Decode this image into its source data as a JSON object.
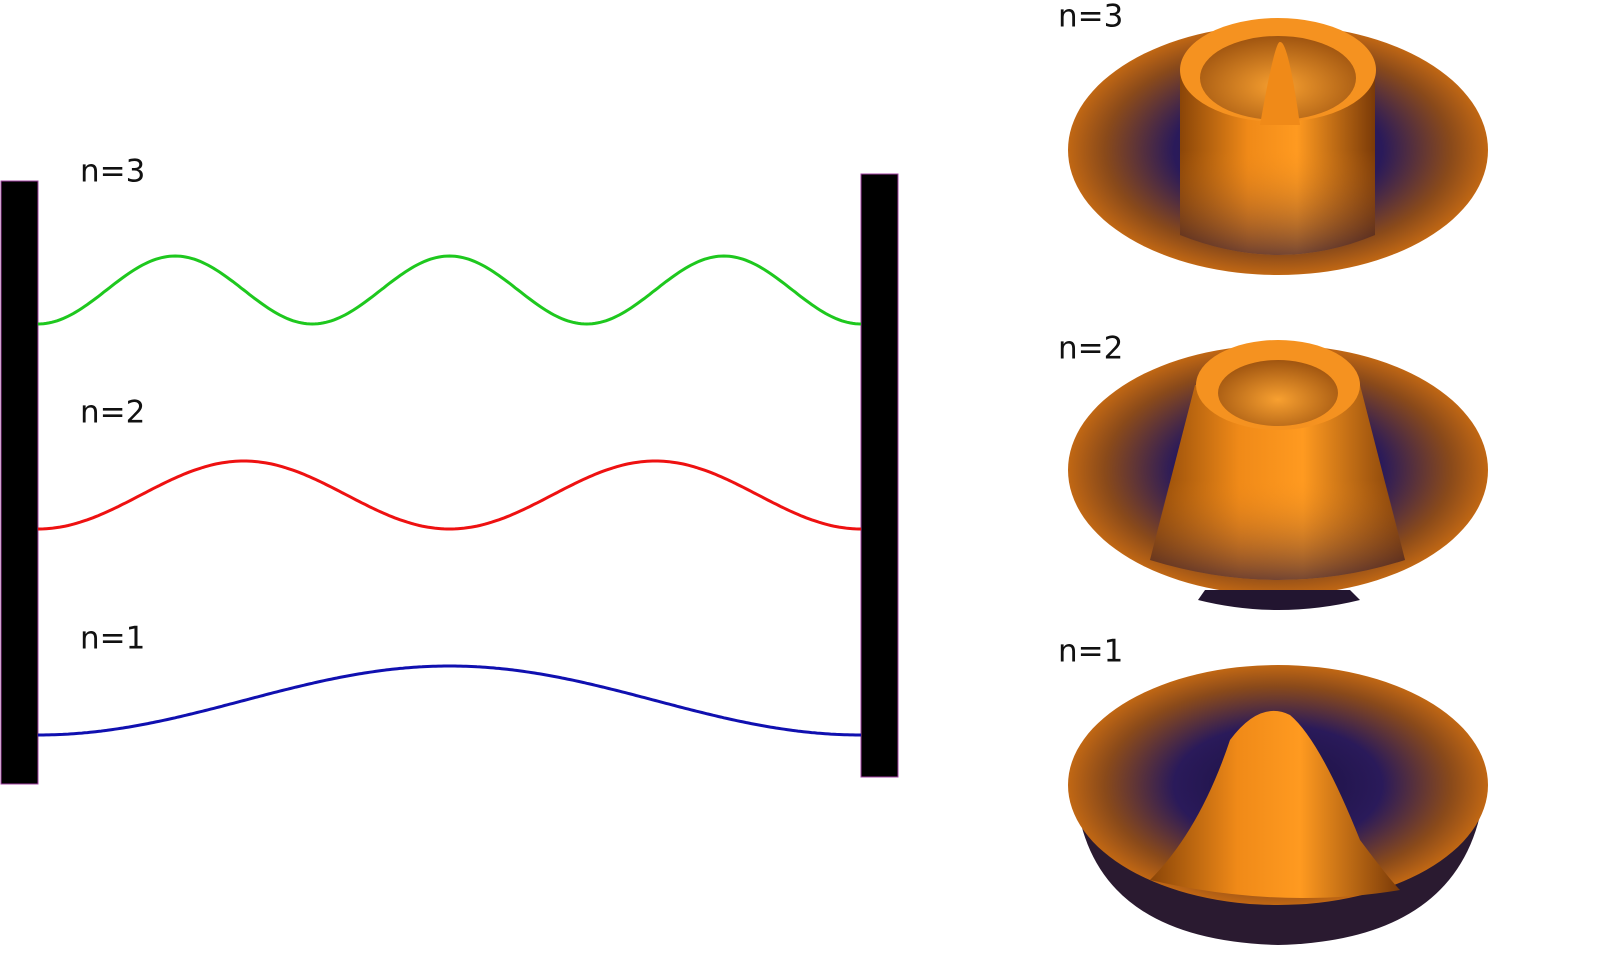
{
  "left_panel": {
    "labels": [
      "n=3",
      "n=2",
      "n=1"
    ]
  },
  "right_panel": {
    "labels": [
      "n=3",
      "n=2",
      "n=1"
    ]
  }
}
